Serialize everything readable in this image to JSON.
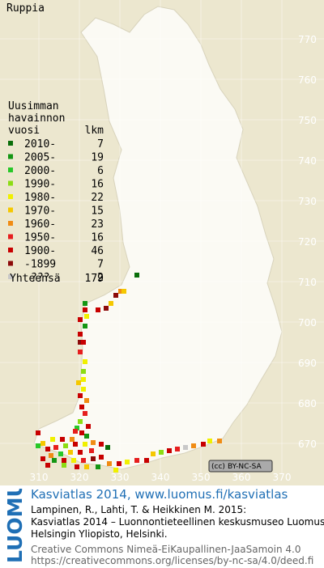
{
  "title": "Ruppia",
  "grid": {
    "north": [
      "770",
      "760",
      "750",
      "740",
      "730",
      "720",
      "710",
      "700",
      "690",
      "680",
      "670"
    ],
    "east": [
      "310",
      "320",
      "330",
      "340",
      "350",
      "360",
      "370"
    ]
  },
  "legend": {
    "title": [
      "Uusimman",
      "havainnon",
      "vuosi"
    ],
    "count_header": "lkm",
    "rows": [
      {
        "label": "2010-",
        "count": 7,
        "color": "#0a6e0a"
      },
      {
        "label": "2005-",
        "count": 19,
        "color": "#149614"
      },
      {
        "label": "2000-",
        "count": 6,
        "color": "#28c828"
      },
      {
        "label": "1990-",
        "count": 16,
        "color": "#8cdc14"
      },
      {
        "label": "1980-",
        "count": 22,
        "color": "#f0f000"
      },
      {
        "label": "1970-",
        "count": 15,
        "color": "#f5c800"
      },
      {
        "label": "1960-",
        "count": 23,
        "color": "#f08c14"
      },
      {
        "label": "1950-",
        "count": 16,
        "color": "#e61e1e"
      },
      {
        "label": "1900-",
        "count": 46,
        "color": "#c80000"
      },
      {
        "label": "-1899",
        "count": 7,
        "color": "#8c0a0a"
      },
      {
        "label": "???",
        "count": 2,
        "color": "#c8c8c8"
      }
    ],
    "total_label": "Yhteensä",
    "total": 179
  },
  "cc_badge": "BY-NC-SA",
  "footer": {
    "logo": "LUOMUS",
    "headline": "Kasviatlas 2014, www.luomus.fi/kasviatlas",
    "citation": [
      "Lampinen, R., Lahti, T. & Heikkinen M. 2015:",
      "Kasviatlas 2014 – Luonnontieteellinen keskusmuseo Luomus,",
      "Helsingin Yliopisto, Helsinki."
    ],
    "license": [
      "Creative Commons Nimeä-EiKaupallinen-JaaSamoin 4.0",
      "https://creativecommons.org/licenses/by-nc-sa/4.0/deed.fi"
    ]
  }
}
